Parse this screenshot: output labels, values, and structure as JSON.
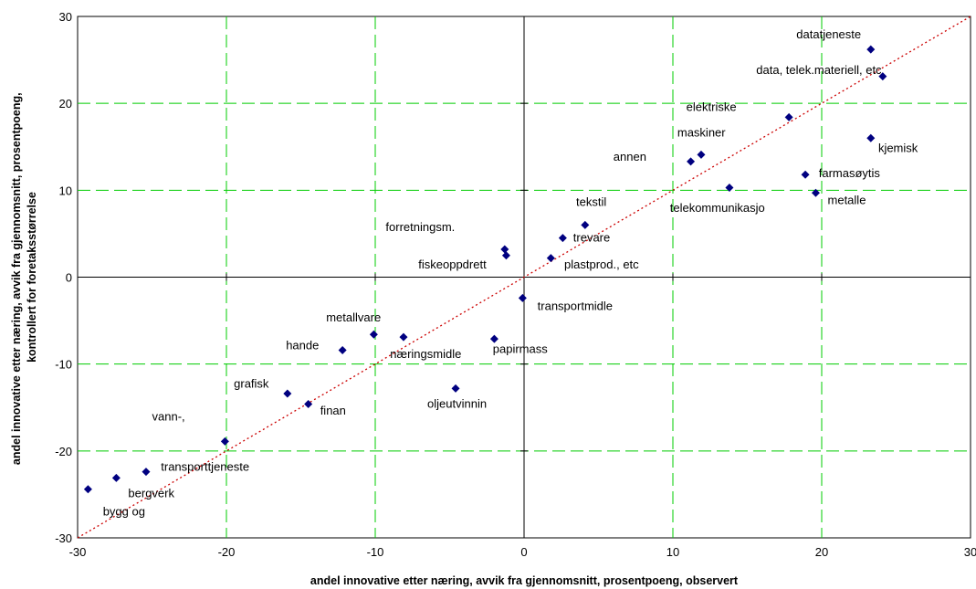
{
  "chart_data": {
    "type": "scatter",
    "xlabel": "andel innovative etter næring, avvik fra gjennomsnitt, prosentpoeng, observert",
    "ylabel_lines": [
      "andel innovative etter næring, avvik fra gjennomsnitt, prosentpoeng,",
      "kontrollert for foretaksstørrelse"
    ],
    "xlim": [
      -30,
      30
    ],
    "ylim": [
      -30,
      30
    ],
    "xticks": [
      -30,
      -20,
      -10,
      0,
      10,
      20,
      30
    ],
    "yticks": [
      -30,
      -20,
      -10,
      0,
      10,
      20,
      30
    ],
    "grid": true,
    "diagonal_line": true,
    "colors": {
      "point": "#000080",
      "grid": "#00cc00",
      "diagonal": "#cc0000",
      "axis": "#000000"
    },
    "points": [
      {
        "x": 23.3,
        "y": 26.2
      },
      {
        "x": 24.1,
        "y": 23.1
      },
      {
        "x": 17.8,
        "y": 18.4
      },
      {
        "x": 23.3,
        "y": 16.0
      },
      {
        "x": 11.9,
        "y": 14.1
      },
      {
        "x": 11.2,
        "y": 13.3
      },
      {
        "x": 18.9,
        "y": 11.8
      },
      {
        "x": 13.8,
        "y": 10.3
      },
      {
        "x": 19.6,
        "y": 9.7
      },
      {
        "x": 4.1,
        "y": 6.0
      },
      {
        "x": 2.6,
        "y": 4.5
      },
      {
        "x": -1.3,
        "y": 3.2
      },
      {
        "x": -1.2,
        "y": 2.5
      },
      {
        "x": 1.8,
        "y": 2.2
      },
      {
        "x": -0.1,
        "y": -2.4
      },
      {
        "x": -10.1,
        "y": -6.6
      },
      {
        "x": -8.1,
        "y": -6.9
      },
      {
        "x": -2.0,
        "y": -7.1
      },
      {
        "x": -12.2,
        "y": -8.4
      },
      {
        "x": -4.6,
        "y": -12.8
      },
      {
        "x": -15.9,
        "y": -13.4
      },
      {
        "x": -14.5,
        "y": -14.6
      },
      {
        "x": -20.1,
        "y": -18.9
      },
      {
        "x": -25.4,
        "y": -22.4
      },
      {
        "x": -27.4,
        "y": -23.1
      },
      {
        "x": -29.3,
        "y": -24.4
      }
    ],
    "annotations": [
      {
        "text": "datatjeneste",
        "x": 18.3,
        "y": 27.5
      },
      {
        "text": "data, telek.materiell, etc",
        "x": 15.6,
        "y": 23.4
      },
      {
        "text": "elektriske",
        "x": 10.9,
        "y": 19.1
      },
      {
        "text": "kjemisk",
        "x": 23.8,
        "y": 14.4
      },
      {
        "text": "maskiner",
        "x": 10.3,
        "y": 16.2
      },
      {
        "text": "annen",
        "x": 6.0,
        "y": 13.4
      },
      {
        "text": "farmasøytis",
        "x": 19.8,
        "y": 11.5
      },
      {
        "text": "telekommunikasjo",
        "x": 9.8,
        "y": 7.5
      },
      {
        "text": "metalle",
        "x": 20.4,
        "y": 8.4
      },
      {
        "text": "tekstil",
        "x": 3.5,
        "y": 8.2
      },
      {
        "text": "forretningsm.",
        "x": -9.3,
        "y": 5.3
      },
      {
        "text": "trevare",
        "x": 3.3,
        "y": 4.1
      },
      {
        "text": "fiskeoppdrett",
        "x": -7.1,
        "y": 1.0
      },
      {
        "text": "plastprod., etc",
        "x": 2.7,
        "y": 1.0
      },
      {
        "text": "transportmidle",
        "x": 0.9,
        "y": -3.8
      },
      {
        "text": "metallvare",
        "x": -13.3,
        "y": -5.1
      },
      {
        "text": "hande",
        "x": -16.0,
        "y": -8.3
      },
      {
        "text": "næringsmidle",
        "x": -9.0,
        "y": -9.3
      },
      {
        "text": "papirmass",
        "x": -2.1,
        "y": -8.7
      },
      {
        "text": "grafisk",
        "x": -19.5,
        "y": -12.7
      },
      {
        "text": "oljeutvinnin",
        "x": -6.5,
        "y": -15.0
      },
      {
        "text": "finan",
        "x": -13.7,
        "y": -15.8
      },
      {
        "text": "vann-,",
        "x": -25.0,
        "y": -16.5
      },
      {
        "text": "transporttjeneste",
        "x": -24.4,
        "y": -22.3
      },
      {
        "text": "bergverk",
        "x": -26.6,
        "y": -25.3
      },
      {
        "text": "bygg og",
        "x": -28.3,
        "y": -27.4
      }
    ]
  }
}
